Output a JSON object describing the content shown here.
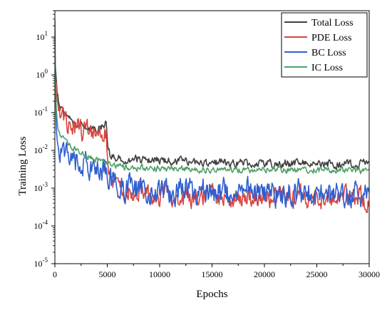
{
  "chart_data": {
    "type": "line",
    "xlabel": "Epochs",
    "ylabel": "Training Loss",
    "xlim": [
      0,
      30000
    ],
    "ylim": [
      1e-05,
      50
    ],
    "yscale": "log",
    "xticks": [
      0,
      5000,
      10000,
      15000,
      20000,
      25000,
      30000
    ],
    "xtick_labels": [
      "0",
      "5000",
      "10000",
      "15000",
      "20000",
      "25000",
      "30000"
    ],
    "yticks": [
      {
        "base": "10",
        "exp": "-5",
        "value": 1e-05
      },
      {
        "base": "10",
        "exp": "-4",
        "value": 0.0001
      },
      {
        "base": "10",
        "exp": "-3",
        "value": 0.001
      },
      {
        "base": "10",
        "exp": "-2",
        "value": 0.01
      },
      {
        "base": "10",
        "exp": "-1",
        "value": 0.1
      },
      {
        "base": "10",
        "exp": "0",
        "value": 1
      },
      {
        "base": "10",
        "exp": "1",
        "value": 10
      }
    ],
    "grid": false,
    "legend_position": "top-right",
    "series": [
      {
        "name": "Total Loss",
        "color": "#404040",
        "x": [
          0,
          100,
          250,
          500,
          800,
          1200,
          1600,
          2000,
          2500,
          3000,
          3500,
          4000,
          4500,
          4900,
          5050,
          5300,
          6000,
          7000,
          8000,
          9000,
          10000,
          12000,
          14000,
          16000,
          18000,
          20000,
          22000,
          24000,
          26000,
          28000,
          30000
        ],
        "y": [
          3.0,
          0.8,
          0.3,
          0.15,
          0.12,
          0.08,
          0.06,
          0.05,
          0.045,
          0.04,
          0.038,
          0.035,
          0.04,
          0.05,
          0.01,
          0.007,
          0.0065,
          0.006,
          0.0058,
          0.0055,
          0.0053,
          0.005,
          0.0048,
          0.0047,
          0.0046,
          0.0045,
          0.0045,
          0.0044,
          0.0044,
          0.0044,
          0.0044
        ],
        "noise": 0.16
      },
      {
        "name": "PDE Loss",
        "color": "#d9453d",
        "x": [
          0,
          100,
          250,
          500,
          800,
          1200,
          1600,
          2000,
          2500,
          3000,
          3500,
          4000,
          4500,
          4900,
          5050,
          5300,
          6000,
          7000,
          8000,
          9000,
          10000,
          12000,
          14000,
          16000,
          18000,
          20000,
          22000,
          24000,
          26000,
          28000,
          30000
        ],
        "y": [
          2.0,
          0.6,
          0.2,
          0.12,
          0.1,
          0.06,
          0.045,
          0.04,
          0.035,
          0.03,
          0.028,
          0.025,
          0.028,
          0.035,
          0.003,
          0.0015,
          0.001,
          0.0009,
          0.0008,
          0.00075,
          0.0007,
          0.00065,
          0.0006,
          0.0006,
          0.00058,
          0.00055,
          0.00055,
          0.00055,
          0.00055,
          0.00055,
          0.00055
        ],
        "noise": 0.42
      },
      {
        "name": "BC Loss",
        "color": "#2f5fd0",
        "x": [
          0,
          60,
          150,
          300,
          600,
          1000,
          1500,
          2000,
          2500,
          3000,
          3500,
          4000,
          4500,
          5000,
          5500,
          6000,
          7000,
          8000,
          10000,
          12000,
          14000,
          16000,
          18000,
          20000,
          22000,
          24000,
          26000,
          28000,
          30000
        ],
        "y": [
          20.0,
          0.5,
          0.05,
          0.02,
          0.01,
          0.008,
          0.006,
          0.005,
          0.004,
          0.0045,
          0.004,
          0.0035,
          0.003,
          0.003,
          0.0015,
          0.0012,
          0.001,
          0.001,
          0.0009,
          0.0009,
          0.0009,
          0.0008,
          0.0008,
          0.00075,
          0.00075,
          0.00075,
          0.0007,
          0.0007,
          0.0007
        ],
        "noise": 0.5
      },
      {
        "name": "IC Loss",
        "color": "#4fa06a",
        "x": [
          0,
          60,
          150,
          300,
          600,
          1000,
          1500,
          2000,
          2500,
          3000,
          3500,
          4000,
          4500,
          5000,
          5500,
          6000,
          7000,
          8000,
          10000,
          12000,
          14000,
          16000,
          18000,
          20000,
          22000,
          24000,
          26000,
          28000,
          30000
        ],
        "y": [
          5.0,
          0.5,
          0.1,
          0.04,
          0.025,
          0.018,
          0.012,
          0.01,
          0.008,
          0.007,
          0.0065,
          0.006,
          0.0055,
          0.005,
          0.004,
          0.0037,
          0.0035,
          0.0034,
          0.0033,
          0.0032,
          0.0031,
          0.003,
          0.003,
          0.003,
          0.003,
          0.003,
          0.003,
          0.0029,
          0.0028
        ],
        "noise": 0.12
      }
    ]
  }
}
